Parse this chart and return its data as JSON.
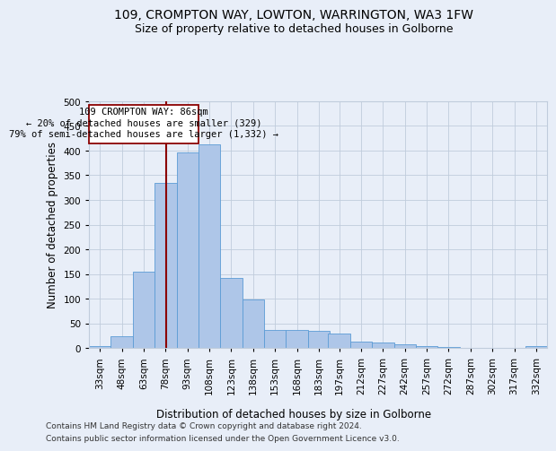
{
  "title1": "109, CROMPTON WAY, LOWTON, WARRINGTON, WA3 1FW",
  "title2": "Size of property relative to detached houses in Golborne",
  "xlabel": "Distribution of detached houses by size in Golborne",
  "ylabel": "Number of detached properties",
  "footnote1": "Contains HM Land Registry data © Crown copyright and database right 2024.",
  "footnote2": "Contains public sector information licensed under the Open Government Licence v3.0.",
  "annotation_line1": "109 CROMPTON WAY: 86sqm",
  "annotation_line2": "← 20% of detached houses are smaller (329)",
  "annotation_line3": "79% of semi-detached houses are larger (1,332) →",
  "bar_color": "#aec6e8",
  "bar_edge_color": "#5b9bd5",
  "vline_color": "#8b0000",
  "vline_x": 86,
  "categories": [
    "33sqm",
    "48sqm",
    "63sqm",
    "78sqm",
    "93sqm",
    "108sqm",
    "123sqm",
    "138sqm",
    "153sqm",
    "168sqm",
    "183sqm",
    "197sqm",
    "212sqm",
    "227sqm",
    "242sqm",
    "257sqm",
    "272sqm",
    "287sqm",
    "302sqm",
    "317sqm",
    "332sqm"
  ],
  "bin_edges": [
    33,
    48,
    63,
    78,
    93,
    108,
    123,
    138,
    153,
    168,
    183,
    197,
    212,
    227,
    242,
    257,
    272,
    287,
    302,
    317,
    332
  ],
  "bar_heights": [
    4,
    24,
    155,
    335,
    396,
    412,
    141,
    98,
    36,
    36,
    34,
    29,
    13,
    11,
    7,
    4,
    1,
    0,
    0,
    0,
    3
  ],
  "ylim": [
    0,
    500
  ],
  "yticks": [
    0,
    50,
    100,
    150,
    200,
    250,
    300,
    350,
    400,
    450,
    500
  ],
  "background_color": "#e8eef8",
  "grid_color": "#c0ccdc",
  "title1_fontsize": 10,
  "title2_fontsize": 9,
  "axis_label_fontsize": 8.5,
  "tick_fontsize": 7.5,
  "annotation_fontsize": 7.5,
  "footnote_fontsize": 6.5
}
